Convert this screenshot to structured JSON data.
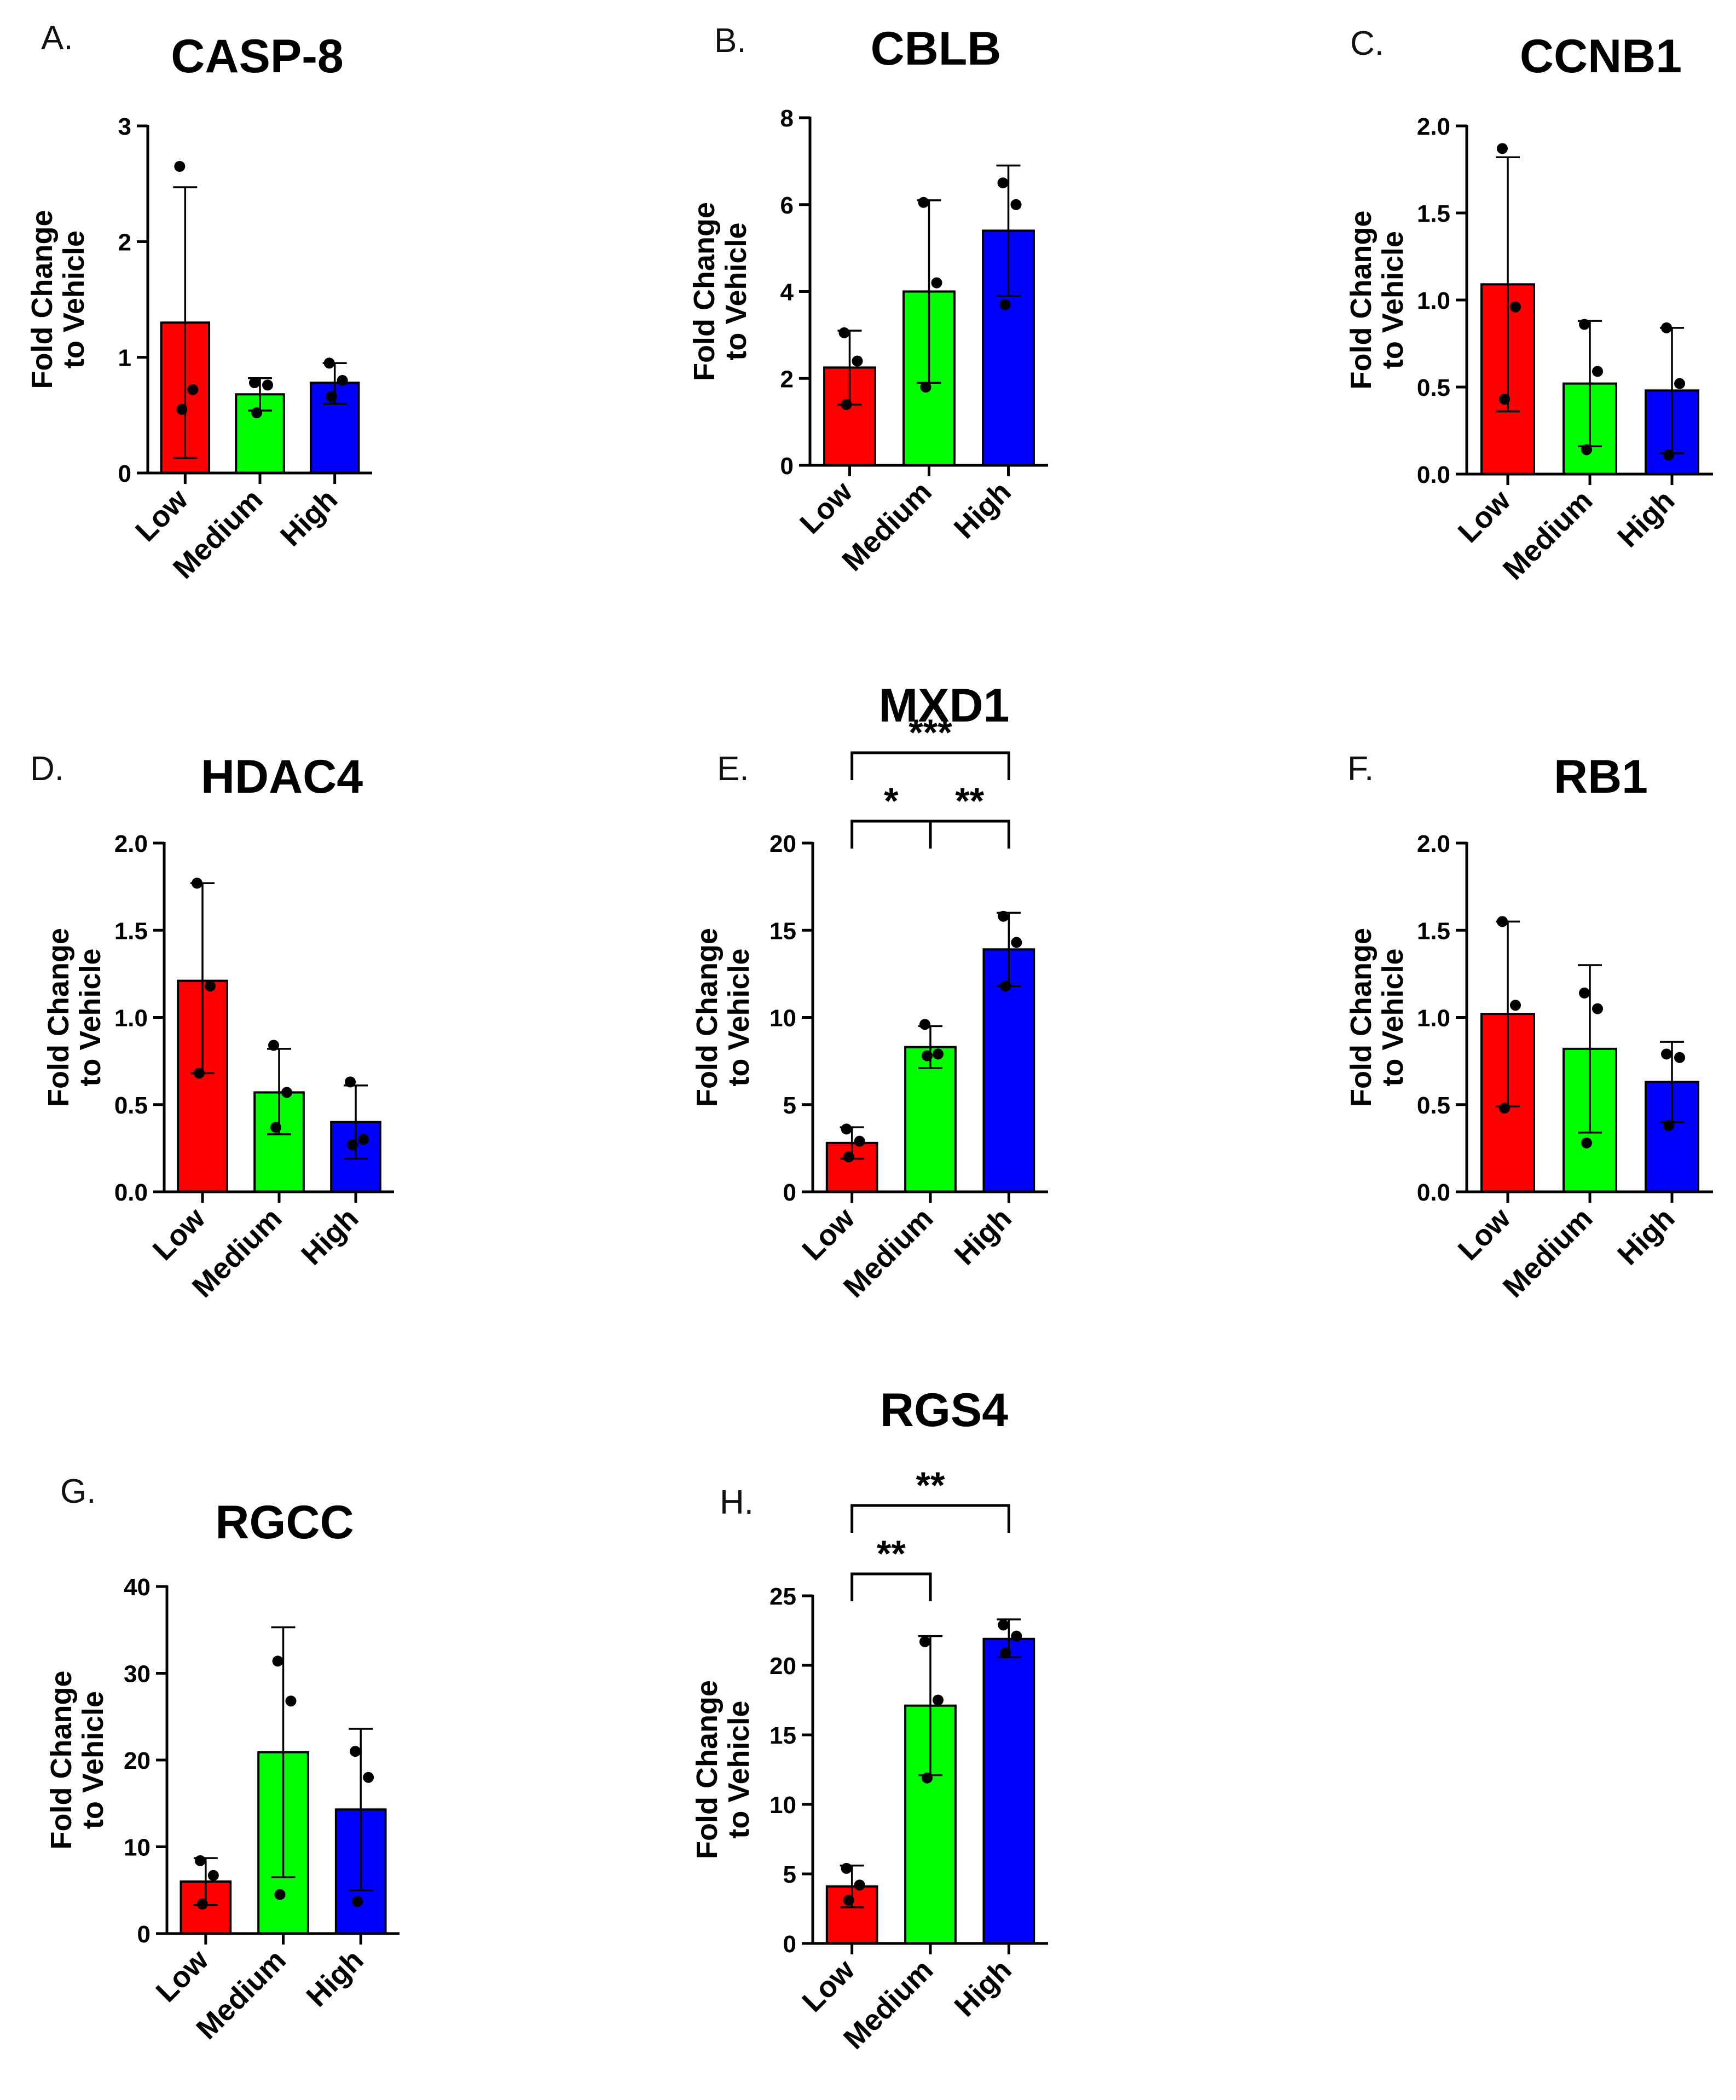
{
  "chart_data": [
    {
      "panel_label": "A.",
      "title": "CASP-8",
      "type": "bar",
      "ylabel": [
        "Fold Change",
        "to Vehicle"
      ],
      "categories": [
        "Low",
        "Medium",
        "High"
      ],
      "ylim": [
        0,
        3
      ],
      "yticks": [
        "0",
        "1",
        "2",
        "3"
      ],
      "values": [
        1.3,
        0.68,
        0.78
      ],
      "error_upper": [
        2.47,
        0.82,
        0.95
      ],
      "error_lower": [
        0.13,
        0.54,
        0.6
      ],
      "points": [
        [
          2.65,
          0.72,
          0.55
        ],
        [
          0.78,
          0.76,
          0.52
        ],
        [
          0.95,
          0.8,
          0.66
        ]
      ],
      "colors": [
        "#ff0000",
        "#00ff00",
        "#0000ff"
      ],
      "significance": []
    },
    {
      "panel_label": "B.",
      "title": "CBLB",
      "type": "bar",
      "ylabel": [
        "Fold Change",
        "to Vehicle"
      ],
      "categories": [
        "Low",
        "Medium",
        "High"
      ],
      "ylim": [
        0,
        8
      ],
      "yticks": [
        "0",
        "2",
        "4",
        "6",
        "8"
      ],
      "values": [
        2.25,
        4.0,
        5.4
      ],
      "error_upper": [
        3.1,
        6.1,
        6.9
      ],
      "error_lower": [
        1.4,
        1.9,
        3.9
      ],
      "points": [
        [
          3.05,
          2.4,
          1.4
        ],
        [
          6.05,
          4.2,
          1.8
        ],
        [
          6.5,
          6.0,
          3.7
        ]
      ],
      "colors": [
        "#ff0000",
        "#00ff00",
        "#0000ff"
      ],
      "significance": []
    },
    {
      "panel_label": "C.",
      "title": "CCNB1",
      "type": "bar",
      "ylabel": [
        "Fold Change",
        "to Vehicle"
      ],
      "categories": [
        "Low",
        "Medium",
        "High"
      ],
      "ylim": [
        0,
        2.0
      ],
      "yticks": [
        "0.0",
        "0.5",
        "1.0",
        "1.5",
        "2.0"
      ],
      "values": [
        1.09,
        0.52,
        0.48
      ],
      "error_upper": [
        1.82,
        0.88,
        0.84
      ],
      "error_lower": [
        0.36,
        0.16,
        0.12
      ],
      "points": [
        [
          1.87,
          0.96,
          0.43
        ],
        [
          0.86,
          0.59,
          0.14
        ],
        [
          0.84,
          0.52,
          0.11
        ]
      ],
      "colors": [
        "#ff0000",
        "#00ff00",
        "#0000ff"
      ],
      "significance": []
    },
    {
      "panel_label": "D.",
      "title": "HDAC4",
      "type": "bar",
      "ylabel": [
        "Fold Change",
        "to Vehicle"
      ],
      "categories": [
        "Low",
        "Medium",
        "High"
      ],
      "ylim": [
        0,
        2.0
      ],
      "yticks": [
        "0.0",
        "0.5",
        "1.0",
        "1.5",
        "2.0"
      ],
      "values": [
        1.21,
        0.57,
        0.4
      ],
      "error_upper": [
        1.77,
        0.82,
        0.61
      ],
      "error_lower": [
        0.68,
        0.33,
        0.19
      ],
      "points": [
        [
          1.77,
          1.18,
          0.68
        ],
        [
          0.84,
          0.57,
          0.37
        ],
        [
          0.63,
          0.3,
          0.27
        ]
      ],
      "colors": [
        "#ff0000",
        "#00ff00",
        "#0000ff"
      ],
      "significance": []
    },
    {
      "panel_label": "E.",
      "title": "MXD1",
      "type": "bar",
      "ylabel": [
        "Fold Change",
        "to Vehicle"
      ],
      "categories": [
        "Low",
        "Medium",
        "High"
      ],
      "ylim": [
        0,
        20
      ],
      "yticks": [
        "0",
        "5",
        "10",
        "15",
        "20"
      ],
      "values": [
        2.8,
        8.3,
        13.9
      ],
      "error_upper": [
        3.7,
        9.5,
        16.0
      ],
      "error_lower": [
        1.9,
        7.1,
        11.8
      ],
      "points": [
        [
          3.6,
          2.9,
          2.0
        ],
        [
          9.6,
          7.9,
          7.8
        ],
        [
          15.8,
          14.3,
          11.8
        ]
      ],
      "colors": [
        "#ff0000",
        "#00ff00",
        "#0000ff"
      ],
      "significance": [
        {
          "from": 0,
          "to": 2,
          "label": "***",
          "level": 2
        },
        {
          "from": 0,
          "to": 1,
          "label": "*",
          "level": 1
        },
        {
          "from": 1,
          "to": 2,
          "label": "**",
          "level": 1
        }
      ]
    },
    {
      "panel_label": "F.",
      "title": "RB1",
      "type": "bar",
      "ylabel": [
        "Fold Change",
        "to Vehicle"
      ],
      "categories": [
        "Low",
        "Medium",
        "High"
      ],
      "ylim": [
        0,
        2.0
      ],
      "yticks": [
        "0.0",
        "0.5",
        "1.0",
        "1.5",
        "2.0"
      ],
      "values": [
        1.02,
        0.82,
        0.63
      ],
      "error_upper": [
        1.55,
        1.3,
        0.86
      ],
      "error_lower": [
        0.49,
        0.34,
        0.4
      ],
      "points": [
        [
          1.55,
          1.07,
          0.48
        ],
        [
          1.14,
          1.05,
          0.28
        ],
        [
          0.79,
          0.77,
          0.38
        ]
      ],
      "colors": [
        "#ff0000",
        "#00ff00",
        "#0000ff"
      ],
      "significance": []
    },
    {
      "panel_label": "G.",
      "title": "RGCC",
      "type": "bar",
      "ylabel": [
        "Fold Change",
        "to Vehicle"
      ],
      "categories": [
        "Low",
        "Medium",
        "High"
      ],
      "ylim": [
        0,
        40
      ],
      "yticks": [
        "0",
        "10",
        "20",
        "30",
        "40"
      ],
      "values": [
        6.0,
        20.9,
        14.3
      ],
      "error_upper": [
        8.7,
        35.3,
        23.6
      ],
      "error_lower": [
        3.3,
        6.5,
        5.0
      ],
      "points": [
        [
          8.4,
          6.7,
          3.4
        ],
        [
          31.4,
          26.8,
          4.5
        ],
        [
          21.0,
          18.0,
          3.7
        ]
      ],
      "colors": [
        "#ff0000",
        "#00ff00",
        "#0000ff"
      ],
      "significance": []
    },
    {
      "panel_label": "H.",
      "title": "RGS4",
      "type": "bar",
      "ylabel": [
        "Fold Change",
        "to Vehicle"
      ],
      "categories": [
        "Low",
        "Medium",
        "High"
      ],
      "ylim": [
        0,
        25
      ],
      "yticks": [
        "0",
        "5",
        "10",
        "15",
        "20",
        "25"
      ],
      "values": [
        4.1,
        17.1,
        21.9
      ],
      "error_upper": [
        5.6,
        22.1,
        23.3
      ],
      "error_lower": [
        2.6,
        12.1,
        20.6
      ],
      "points": [
        [
          5.4,
          4.2,
          3.1
        ],
        [
          21.7,
          17.5,
          11.9
        ],
        [
          22.9,
          22.1,
          20.9
        ]
      ],
      "colors": [
        "#ff0000",
        "#00ff00",
        "#0000ff"
      ],
      "significance": [
        {
          "from": 0,
          "to": 2,
          "label": "**",
          "level": 2
        },
        {
          "from": 0,
          "to": 1,
          "label": "**",
          "level": 1
        }
      ]
    }
  ]
}
